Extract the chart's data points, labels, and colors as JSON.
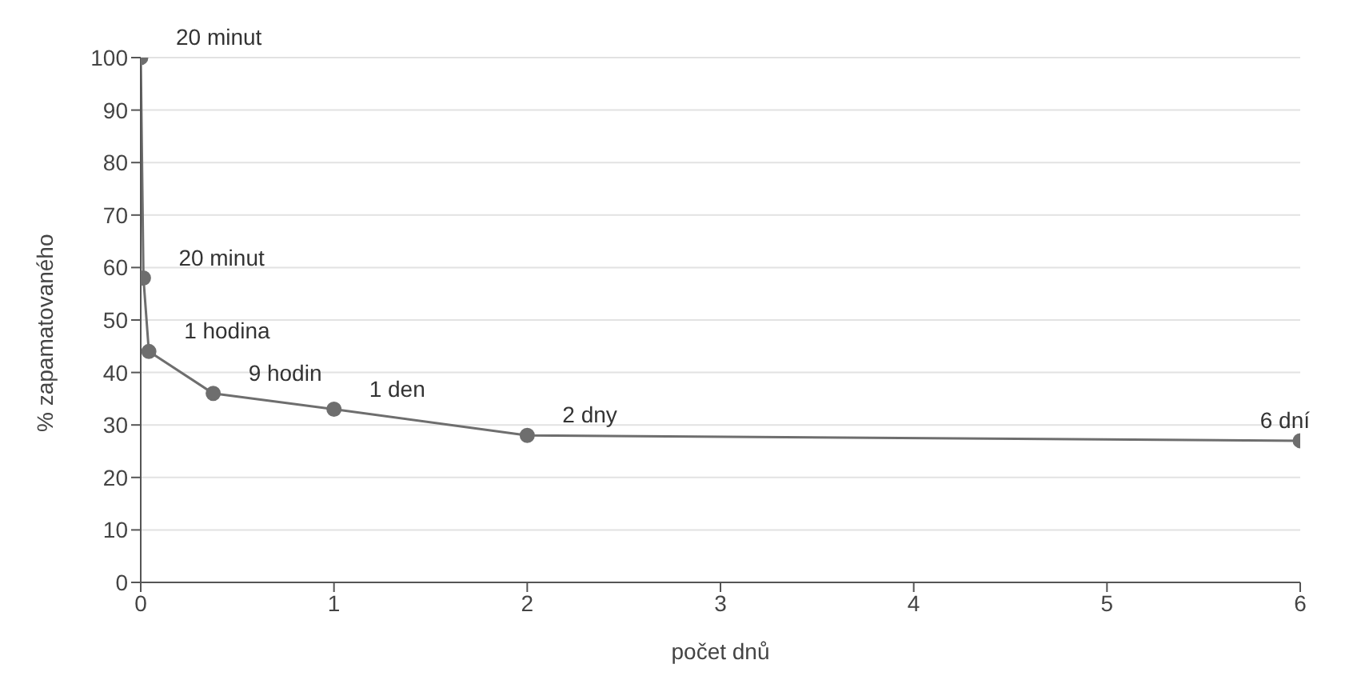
{
  "chart_data": {
    "type": "line",
    "xlabel": "počet dnů",
    "ylabel": "% zapamatovaného",
    "x": [
      0,
      0.014,
      0.042,
      0.375,
      1,
      2,
      6
    ],
    "series": [
      {
        "color": "#6e6e6e",
        "values": [
          100,
          58,
          44,
          36,
          33,
          28,
          27
        ]
      }
    ],
    "xlim": [
      0,
      6
    ],
    "xticks": [
      0,
      1,
      2,
      3,
      4,
      5,
      6
    ],
    "ylim": [
      0,
      100
    ],
    "yticks": [
      0,
      10,
      20,
      30,
      40,
      50,
      60,
      70,
      80,
      90,
      100
    ],
    "grid": "y",
    "marker": "circle",
    "line_style": "solid",
    "legend": false,
    "annotations": [
      {
        "text": "20 minut",
        "x": 0,
        "y": 100
      },
      {
        "text": "20 minut",
        "x": 0.014,
        "y": 58
      },
      {
        "text": "1 hodina",
        "x": 0.042,
        "y": 44
      },
      {
        "text": "9 hodin",
        "x": 0.375,
        "y": 36
      },
      {
        "text": "1 den",
        "x": 1,
        "y": 33
      },
      {
        "text": "2 dny",
        "x": 2,
        "y": 28
      },
      {
        "text": "6 dní",
        "x": 6,
        "y": 27
      }
    ]
  }
}
